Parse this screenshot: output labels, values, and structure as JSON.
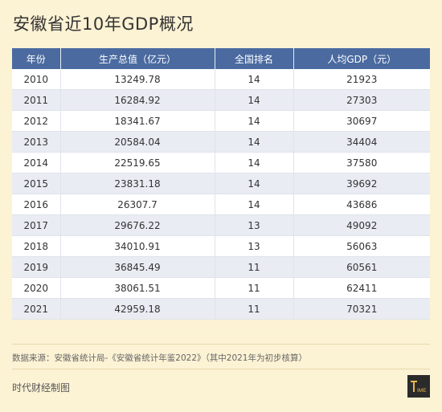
{
  "title": "安徽省近10年GDP概况",
  "table": {
    "headers": [
      "年份",
      "生产总值（亿元）",
      "全国排名",
      "人均GDP（元）"
    ],
    "rows": [
      [
        "2010",
        "13249.78",
        "14",
        "21923"
      ],
      [
        "2011",
        "16284.92",
        "14",
        "27303"
      ],
      [
        "2012",
        "18341.67",
        "14",
        "30697"
      ],
      [
        "2013",
        "20584.04",
        "14",
        "34404"
      ],
      [
        "2014",
        "22519.65",
        "14",
        "37580"
      ],
      [
        "2015",
        "23831.18",
        "14",
        "39692"
      ],
      [
        "2016",
        "26307.7",
        "14",
        "43686"
      ],
      [
        "2017",
        "29676.22",
        "13",
        "49092"
      ],
      [
        "2018",
        "34010.91",
        "13",
        "56063"
      ],
      [
        "2019",
        "36845.49",
        "11",
        "60561"
      ],
      [
        "2020",
        "38061.51",
        "11",
        "62411"
      ],
      [
        "2021",
        "42959.18",
        "11",
        "70321"
      ]
    ]
  },
  "source": "数据来源：安徽省统计局-《安徽省统计年鉴2022》（其中2021年为初步核算）",
  "credit": "时代财经制图",
  "logo": {
    "text": "TIME",
    "icon": "time-logo-icon",
    "background": "#2b2b2b",
    "accent": "#e8b84a"
  },
  "colors": {
    "header_bg": "#4a6aa0",
    "row_alt": "#e9ecf3",
    "page_bg": "#fcf2d4"
  }
}
